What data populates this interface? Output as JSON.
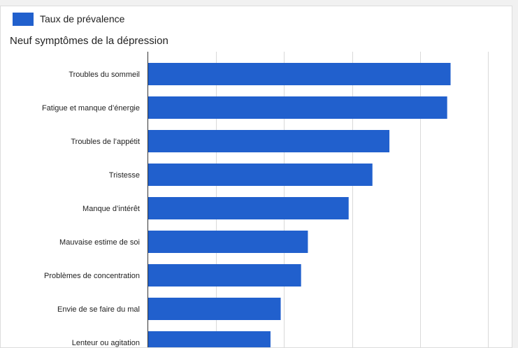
{
  "colors": {
    "bar": "#2160cd",
    "grid": "#d9d9d9",
    "axis": "#333333"
  },
  "chart_data": {
    "type": "bar",
    "orientation": "horizontal",
    "title": "Neuf symptômes de la dépression",
    "legend": {
      "position": "top-left",
      "entries": [
        "Taux de prévalence"
      ]
    },
    "grid": true,
    "xlim": [
      0,
      100
    ],
    "categories": [
      "Troubles du sommeil",
      "Fatigue et manque d’énergie",
      "Troubles de l’appétit",
      "Tristesse",
      "Manque d’intérêt",
      "Mauvaise estime de soi",
      "Problèmes de concentration",
      "Envie de se faire du mal",
      "Lenteur ou agitation"
    ],
    "series": [
      {
        "name": "Taux de prévalence",
        "values": [
          89,
          88,
          71,
          66,
          59,
          47,
          45,
          39,
          36
        ]
      }
    ]
  }
}
